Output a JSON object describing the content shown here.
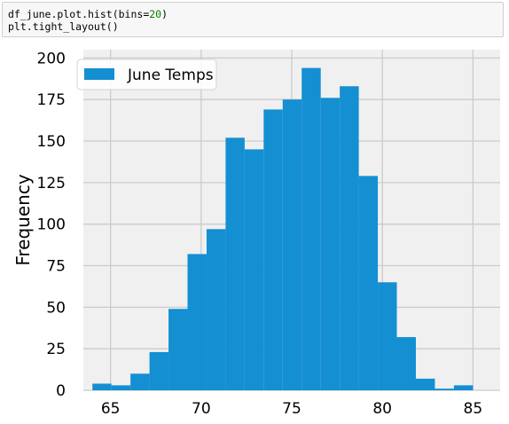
{
  "code_cell": {
    "line1_prefix": "df_june.plot.hist(bins=",
    "line1_number": "20",
    "line1_suffix": ")",
    "line2": "plt.tight_layout()"
  },
  "chart_data": {
    "type": "bar",
    "subtype": "histogram",
    "xlabel": "",
    "ylabel": "Frequency",
    "xlim": [
      63.5,
      86.5
    ],
    "ylim": [
      0,
      205
    ],
    "xticks": [
      65,
      70,
      75,
      80,
      85
    ],
    "yticks": [
      0,
      25,
      50,
      75,
      100,
      125,
      150,
      175,
      200
    ],
    "bin_edges": [
      64,
      65.05,
      66.1,
      67.15,
      68.2,
      69.25,
      70.3,
      71.35,
      72.4,
      73.45,
      74.5,
      75.55,
      76.6,
      77.65,
      78.7,
      79.75,
      80.8,
      81.85,
      82.9,
      83.95,
      85
    ],
    "series": [
      {
        "name": "June Temps",
        "values": [
          4,
          3,
          10,
          23,
          49,
          82,
          97,
          152,
          145,
          169,
          175,
          194,
          176,
          183,
          129,
          65,
          32,
          7,
          1,
          3
        ]
      }
    ],
    "legend": {
      "position": "top-left"
    },
    "grid": true,
    "colors": {
      "bar": "#148fd2",
      "background": "#f0f0f0",
      "grid": "#cbcbcb",
      "text": "#000000"
    }
  }
}
